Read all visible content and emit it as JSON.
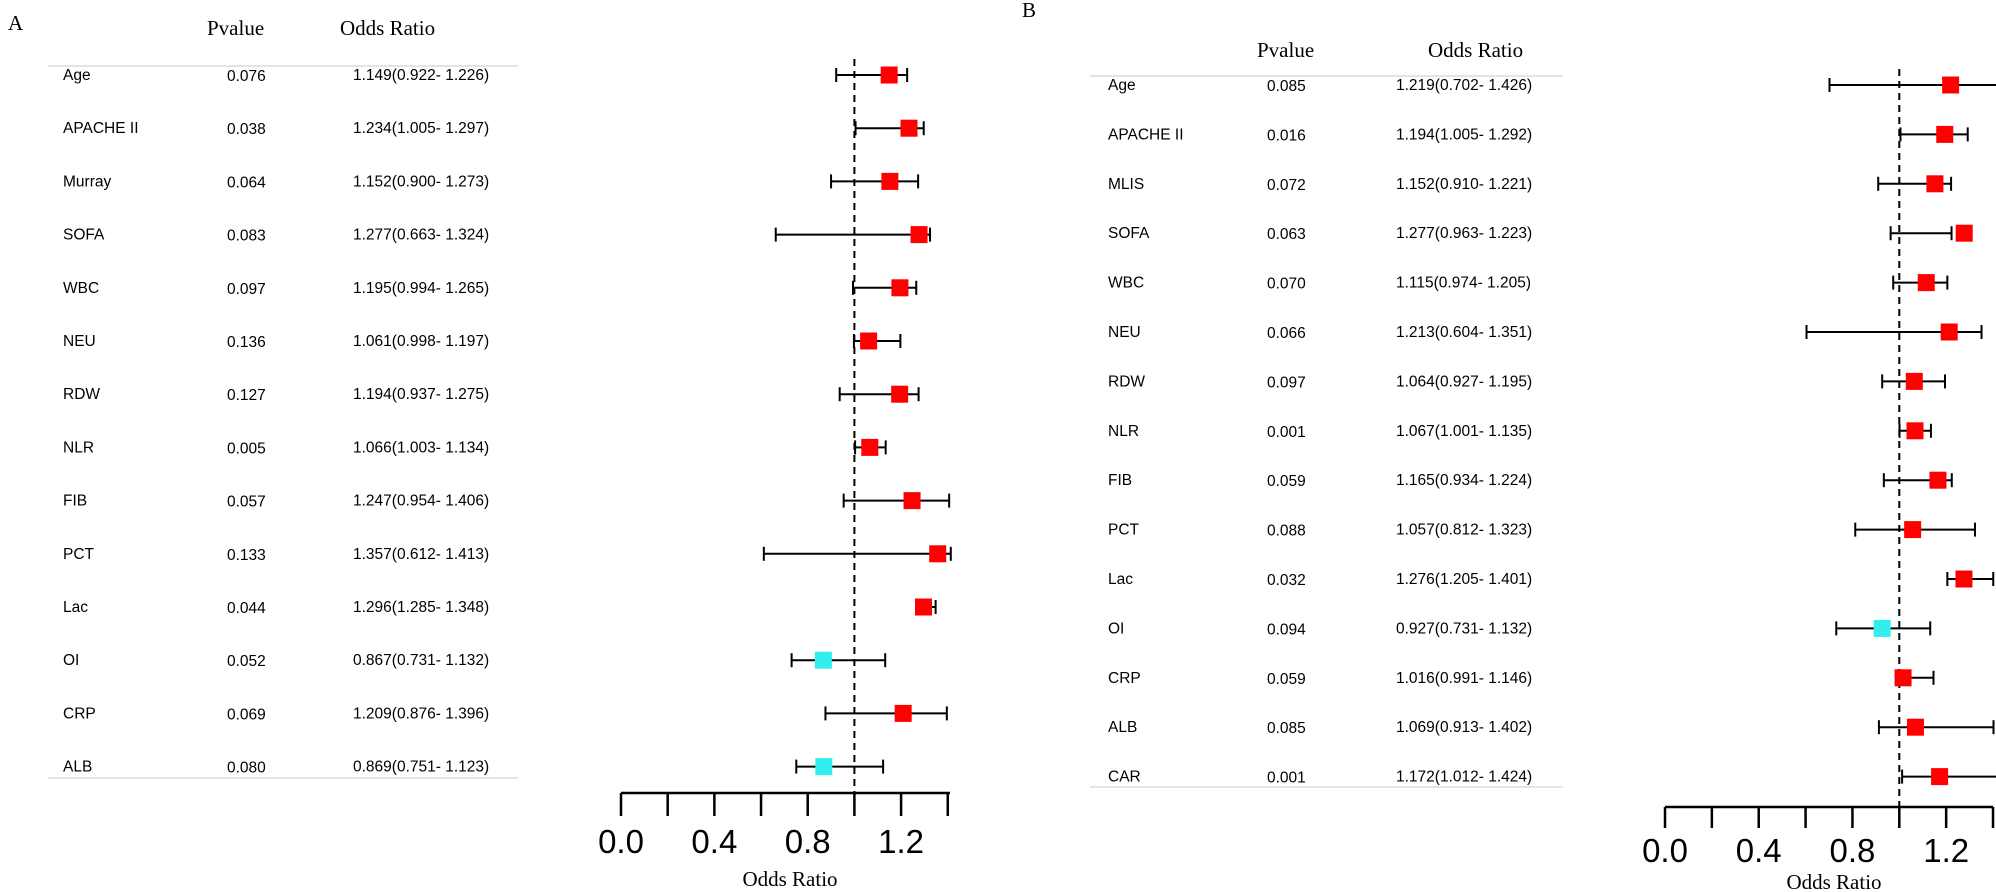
{
  "colors": {
    "risk": "#ff0000",
    "protective": "#33eeee",
    "line": "#000000",
    "rule": "#d3d3d3"
  },
  "chart_data": [
    {
      "type": "forest",
      "panel_label": "A",
      "col_pvalue_header": "Pvalue",
      "col_or_header": "Odds Ratio",
      "xlabel": "Odds Ratio",
      "xlim": [
        0.0,
        1.4
      ],
      "xticks": [
        "0.0",
        "0.4",
        "0.8",
        "1.2"
      ],
      "reference_line": 1.0,
      "rows": [
        {
          "label": "Age",
          "pvalue": "0.076",
          "or_text": "1.149(0.922- 1.226)",
          "or": 1.149,
          "low": 0.922,
          "high": 1.226
        },
        {
          "label": "APACHE II",
          "pvalue": "0.038",
          "or_text": "1.234(1.005- 1.297)",
          "or": 1.234,
          "low": 1.005,
          "high": 1.297
        },
        {
          "label": "Murray",
          "pvalue": "0.064",
          "or_text": "1.152(0.900- 1.273)",
          "or": 1.152,
          "low": 0.9,
          "high": 1.273
        },
        {
          "label": "SOFA",
          "pvalue": "0.083",
          "or_text": "1.277(0.663- 1.324)",
          "or": 1.277,
          "low": 0.663,
          "high": 1.324
        },
        {
          "label": "WBC",
          "pvalue": "0.097",
          "or_text": "1.195(0.994- 1.265)",
          "or": 1.195,
          "low": 0.994,
          "high": 1.265
        },
        {
          "label": "NEU",
          "pvalue": "0.136",
          "or_text": "1.061(0.998- 1.197)",
          "or": 1.061,
          "low": 0.998,
          "high": 1.197
        },
        {
          "label": "RDW",
          "pvalue": "0.127",
          "or_text": "1.194(0.937- 1.275)",
          "or": 1.194,
          "low": 0.937,
          "high": 1.275
        },
        {
          "label": "NLR",
          "pvalue": "0.005",
          "or_text": "1.066(1.003- 1.134)",
          "or": 1.066,
          "low": 1.003,
          "high": 1.134
        },
        {
          "label": "FIB",
          "pvalue": "0.057",
          "or_text": "1.247(0.954- 1.406)",
          "or": 1.247,
          "low": 0.954,
          "high": 1.406
        },
        {
          "label": "PCT",
          "pvalue": "0.133",
          "or_text": "1.357(0.612- 1.413)",
          "or": 1.357,
          "low": 0.612,
          "high": 1.413
        },
        {
          "label": "Lac",
          "pvalue": "0.044",
          "or_text": "1.296(1.285- 1.348)",
          "or": 1.296,
          "low": 1.285,
          "high": 1.348
        },
        {
          "label": "OI",
          "pvalue": "0.052",
          "or_text": "0.867(0.731- 1.132)",
          "or": 0.867,
          "low": 0.731,
          "high": 1.132
        },
        {
          "label": "CRP",
          "pvalue": "0.069",
          "or_text": "1.209(0.876- 1.396)",
          "or": 1.209,
          "low": 0.876,
          "high": 1.396
        },
        {
          "label": "ALB",
          "pvalue": "0.080",
          "or_text": "0.869(0.751- 1.123)",
          "or": 0.869,
          "low": 0.751,
          "high": 1.123
        }
      ]
    },
    {
      "type": "forest",
      "panel_label": "B",
      "col_pvalue_header": "Pvalue",
      "col_or_header": "Odds Ratio",
      "xlabel": "Odds Ratio",
      "xlim": [
        0.0,
        1.4
      ],
      "xticks": [
        "0.0",
        "0.4",
        "0.8",
        "1.2"
      ],
      "reference_line": 1.0,
      "rows": [
        {
          "label": "Age",
          "pvalue": "0.085",
          "or_text": "1.219(0.702- 1.426)",
          "or": 1.219,
          "low": 0.702,
          "high": 1.426
        },
        {
          "label": "APACHE II",
          "pvalue": "0.016",
          "or_text": "1.194(1.005- 1.292)",
          "or": 1.194,
          "low": 1.005,
          "high": 1.292
        },
        {
          "label": "MLIS",
          "pvalue": "0.072",
          "or_text": "1.152(0.910- 1.221)",
          "or": 1.152,
          "low": 0.91,
          "high": 1.221
        },
        {
          "label": "SOFA",
          "pvalue": "0.063",
          "or_text": "1.277(0.963- 1.223)",
          "or": 1.277,
          "low": 0.963,
          "high": 1.223
        },
        {
          "label": "WBC",
          "pvalue": "0.070",
          "or_text": "1.115(0.974- 1.205)",
          "or": 1.115,
          "low": 0.974,
          "high": 1.205
        },
        {
          "label": "NEU",
          "pvalue": "0.066",
          "or_text": "1.213(0.604- 1.351)",
          "or": 1.213,
          "low": 0.604,
          "high": 1.351
        },
        {
          "label": "RDW",
          "pvalue": "0.097",
          "or_text": "1.064(0.927- 1.195)",
          "or": 1.064,
          "low": 0.927,
          "high": 1.195
        },
        {
          "label": "NLR",
          "pvalue": "0.001",
          "or_text": "1.067(1.001- 1.135)",
          "or": 1.067,
          "low": 1.001,
          "high": 1.135
        },
        {
          "label": "FIB",
          "pvalue": "0.059",
          "or_text": "1.165(0.934- 1.224)",
          "or": 1.165,
          "low": 0.934,
          "high": 1.224
        },
        {
          "label": "PCT",
          "pvalue": "0.088",
          "or_text": "1.057(0.812- 1.323)",
          "or": 1.057,
          "low": 0.812,
          "high": 1.323
        },
        {
          "label": "Lac",
          "pvalue": "0.032",
          "or_text": "1.276(1.205- 1.401)",
          "or": 1.276,
          "low": 1.205,
          "high": 1.401
        },
        {
          "label": "OI",
          "pvalue": "0.094",
          "or_text": "0.927(0.731- 1.132)",
          "or": 0.927,
          "low": 0.731,
          "high": 1.132
        },
        {
          "label": "CRP",
          "pvalue": "0.059",
          "or_text": "1.016(0.991- 1.146)",
          "or": 1.016,
          "low": 0.991,
          "high": 1.146
        },
        {
          "label": "ALB",
          "pvalue": "0.085",
          "or_text": "1.069(0.913- 1.402)",
          "or": 1.069,
          "low": 0.913,
          "high": 1.402
        },
        {
          "label": "CAR",
          "pvalue": "0.001",
          "or_text": "1.172(1.012- 1.424)",
          "or": 1.172,
          "low": 1.012,
          "high": 1.424
        }
      ]
    }
  ]
}
